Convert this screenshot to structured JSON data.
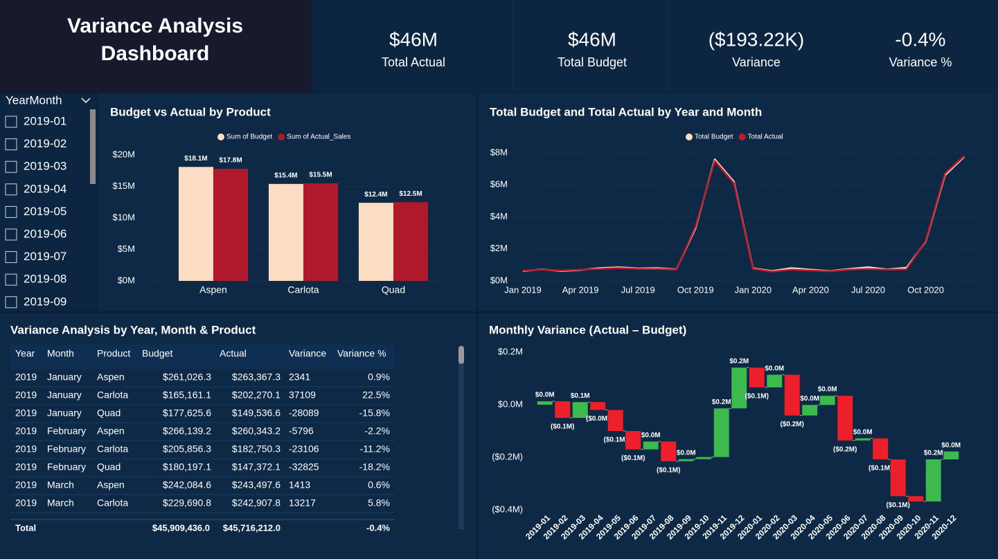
{
  "header": {
    "title": "Variance Analysis Dashboard"
  },
  "kpis": [
    {
      "value": "$46M",
      "label": "Total Actual"
    },
    {
      "value": "$46M",
      "label": "Total Budget"
    },
    {
      "value": "($193.22K)",
      "label": "Variance"
    },
    {
      "value": "-0.4%",
      "label": "Variance %"
    }
  ],
  "slicer": {
    "title": "YearMonth",
    "items": [
      "2019-01",
      "2019-02",
      "2019-03",
      "2019-04",
      "2019-05",
      "2019-06",
      "2019-07",
      "2019-08",
      "2019-09"
    ]
  },
  "table": {
    "title": "Variance Analysis by Year, Month & Product",
    "columns": [
      "Year",
      "Month",
      "Product",
      "Budget",
      "Actual",
      "Variance",
      "Variance %"
    ],
    "rows": [
      [
        "2019",
        "January",
        "Aspen",
        "$261,026.3",
        "$263,367.3",
        "2341",
        "0.9%"
      ],
      [
        "2019",
        "January",
        "Carlota",
        "$165,161.1",
        "$202,270.1",
        "37109",
        "22.5%"
      ],
      [
        "2019",
        "January",
        "Quad",
        "$177,625.6",
        "$149,536.6",
        "-28089",
        "-15.8%"
      ],
      [
        "2019",
        "February",
        "Aspen",
        "$266,139.2",
        "$260,343.2",
        "-5796",
        "-2.2%"
      ],
      [
        "2019",
        "February",
        "Carlota",
        "$205,856.3",
        "$182,750.3",
        "-23106",
        "-11.2%"
      ],
      [
        "2019",
        "February",
        "Quad",
        "$180,197.1",
        "$147,372.1",
        "-32825",
        "-18.2%"
      ],
      [
        "2019",
        "March",
        "Aspen",
        "$242,084.6",
        "$243,497.6",
        "1413",
        "0.6%"
      ],
      [
        "2019",
        "March",
        "Carlota",
        "$229,690.8",
        "$242,907.8",
        "13217",
        "5.8%"
      ]
    ],
    "total": {
      "label": "Total",
      "budget": "$45,909,436.0",
      "actual": "$45,716,212.0",
      "variance_pct": "-0.4%"
    }
  },
  "chart_data": [
    {
      "type": "bar",
      "title": "Budget vs Actual by Product",
      "categories": [
        "Aspen",
        "Carlota",
        "Quad"
      ],
      "series": [
        {
          "name": "Sum of Budget",
          "color": "#fddcc4",
          "values": [
            18.1,
            15.4,
            12.4
          ],
          "value_labels": [
            "$18.1M",
            "$15.4M",
            "$12.4M"
          ]
        },
        {
          "name": "Sum of Actual_Sales",
          "color": "#b0192b",
          "values": [
            17.8,
            15.5,
            12.5
          ],
          "value_labels": [
            "$17.8M",
            "$15.5M",
            "$12.5M"
          ]
        }
      ],
      "ylim": [
        0,
        20
      ],
      "yticks": [
        {
          "value": 0,
          "label": "$0M"
        },
        {
          "value": 5,
          "label": "$5M"
        },
        {
          "value": 10,
          "label": "$10M"
        },
        {
          "value": 15,
          "label": "$15M"
        },
        {
          "value": 20,
          "label": "$20M"
        }
      ],
      "grid": true,
      "legend": "top"
    },
    {
      "type": "line",
      "title": "Total Budget and Total Actual by Year and Month",
      "categories": [
        "Jan 2019",
        null,
        null,
        "Apr 2019",
        null,
        null,
        "Jul 2019",
        null,
        null,
        "Oct 2019",
        null,
        null,
        "Jan 2020",
        null,
        null,
        "Apr 2020",
        null,
        null,
        "Jul 2020",
        null,
        null,
        "Oct 2020",
        null,
        null
      ],
      "series": [
        {
          "name": "Total Budget",
          "color": "#fddcc4",
          "values": [
            0.62,
            0.72,
            0.62,
            0.68,
            0.8,
            0.85,
            0.78,
            0.8,
            0.72,
            3.3,
            7.6,
            6.2,
            0.78,
            0.62,
            0.8,
            0.7,
            0.62,
            0.75,
            0.85,
            0.72,
            0.82,
            2.45,
            6.6,
            7.75
          ]
        },
        {
          "name": "Total Actual",
          "color": "#c0182c",
          "values": [
            0.65,
            0.7,
            0.65,
            0.7,
            0.75,
            0.8,
            0.75,
            0.75,
            0.7,
            3.4,
            7.5,
            6.1,
            0.75,
            0.58,
            0.7,
            0.65,
            0.6,
            0.7,
            0.75,
            0.7,
            0.72,
            2.5,
            6.7,
            7.8
          ]
        }
      ],
      "ylim": [
        0,
        8
      ],
      "yticks": [
        {
          "value": 0,
          "label": "$0M"
        },
        {
          "value": 2,
          "label": "$2M"
        },
        {
          "value": 4,
          "label": "$4M"
        },
        {
          "value": 6,
          "label": "$6M"
        },
        {
          "value": 8,
          "label": "$8M"
        }
      ],
      "grid": true,
      "legend": "top"
    },
    {
      "type": "waterfall",
      "title": "Monthly Variance (Actual – Budget)",
      "categories": [
        "2019-01",
        "2019-02",
        "2019-03",
        "2019-04",
        "2019-05",
        "2019-06",
        "2019-07",
        "2019-08",
        "2019-09",
        "2019-10",
        "2019-11",
        "2019-12",
        "2020-01",
        "2020-02",
        "2020-03",
        "2020-04",
        "2020-05",
        "2020-06",
        "2020-07",
        "2020-08",
        "2020-09",
        "2020-10",
        "2020-11",
        "2020-12"
      ],
      "values": [
        0.013,
        -0.063,
        0.06,
        -0.03,
        -0.08,
        -0.07,
        0.03,
        -0.075,
        0.008,
        0.008,
        0.185,
        0.155,
        -0.075,
        0.048,
        -0.155,
        0.04,
        0.035,
        -0.17,
        0.008,
        -0.08,
        -0.14,
        -0.02,
        0.16,
        0.03
      ],
      "value_labels": [
        "$0.0M",
        "($0.1M)",
        "$0.1M",
        "($0.0M)",
        "($0.1M)",
        "($0.1M)",
        "$0.0M",
        "($0.1M)",
        "$0.0M",
        null,
        "$0.2M",
        "$0.2M",
        "($0.1M)",
        "$0.0M",
        "($0.2M)",
        "$0.0M",
        "$0.0M",
        "($0.2M)",
        "$0.0M",
        "($0.1M)",
        "($0.1M)",
        null,
        "$0.2M",
        "$0.0M"
      ],
      "increase_color": "#3dba4e",
      "decrease_color": "#ec1f2a",
      "ylim": [
        -0.4,
        0.2
      ],
      "yticks": [
        {
          "value": 0.2,
          "label": "$0.2M"
        },
        {
          "value": 0,
          "label": "$0.0M"
        },
        {
          "value": -0.2,
          "label": "($0.2M)"
        },
        {
          "value": -0.4,
          "label": "($0.4M)"
        }
      ]
    }
  ]
}
